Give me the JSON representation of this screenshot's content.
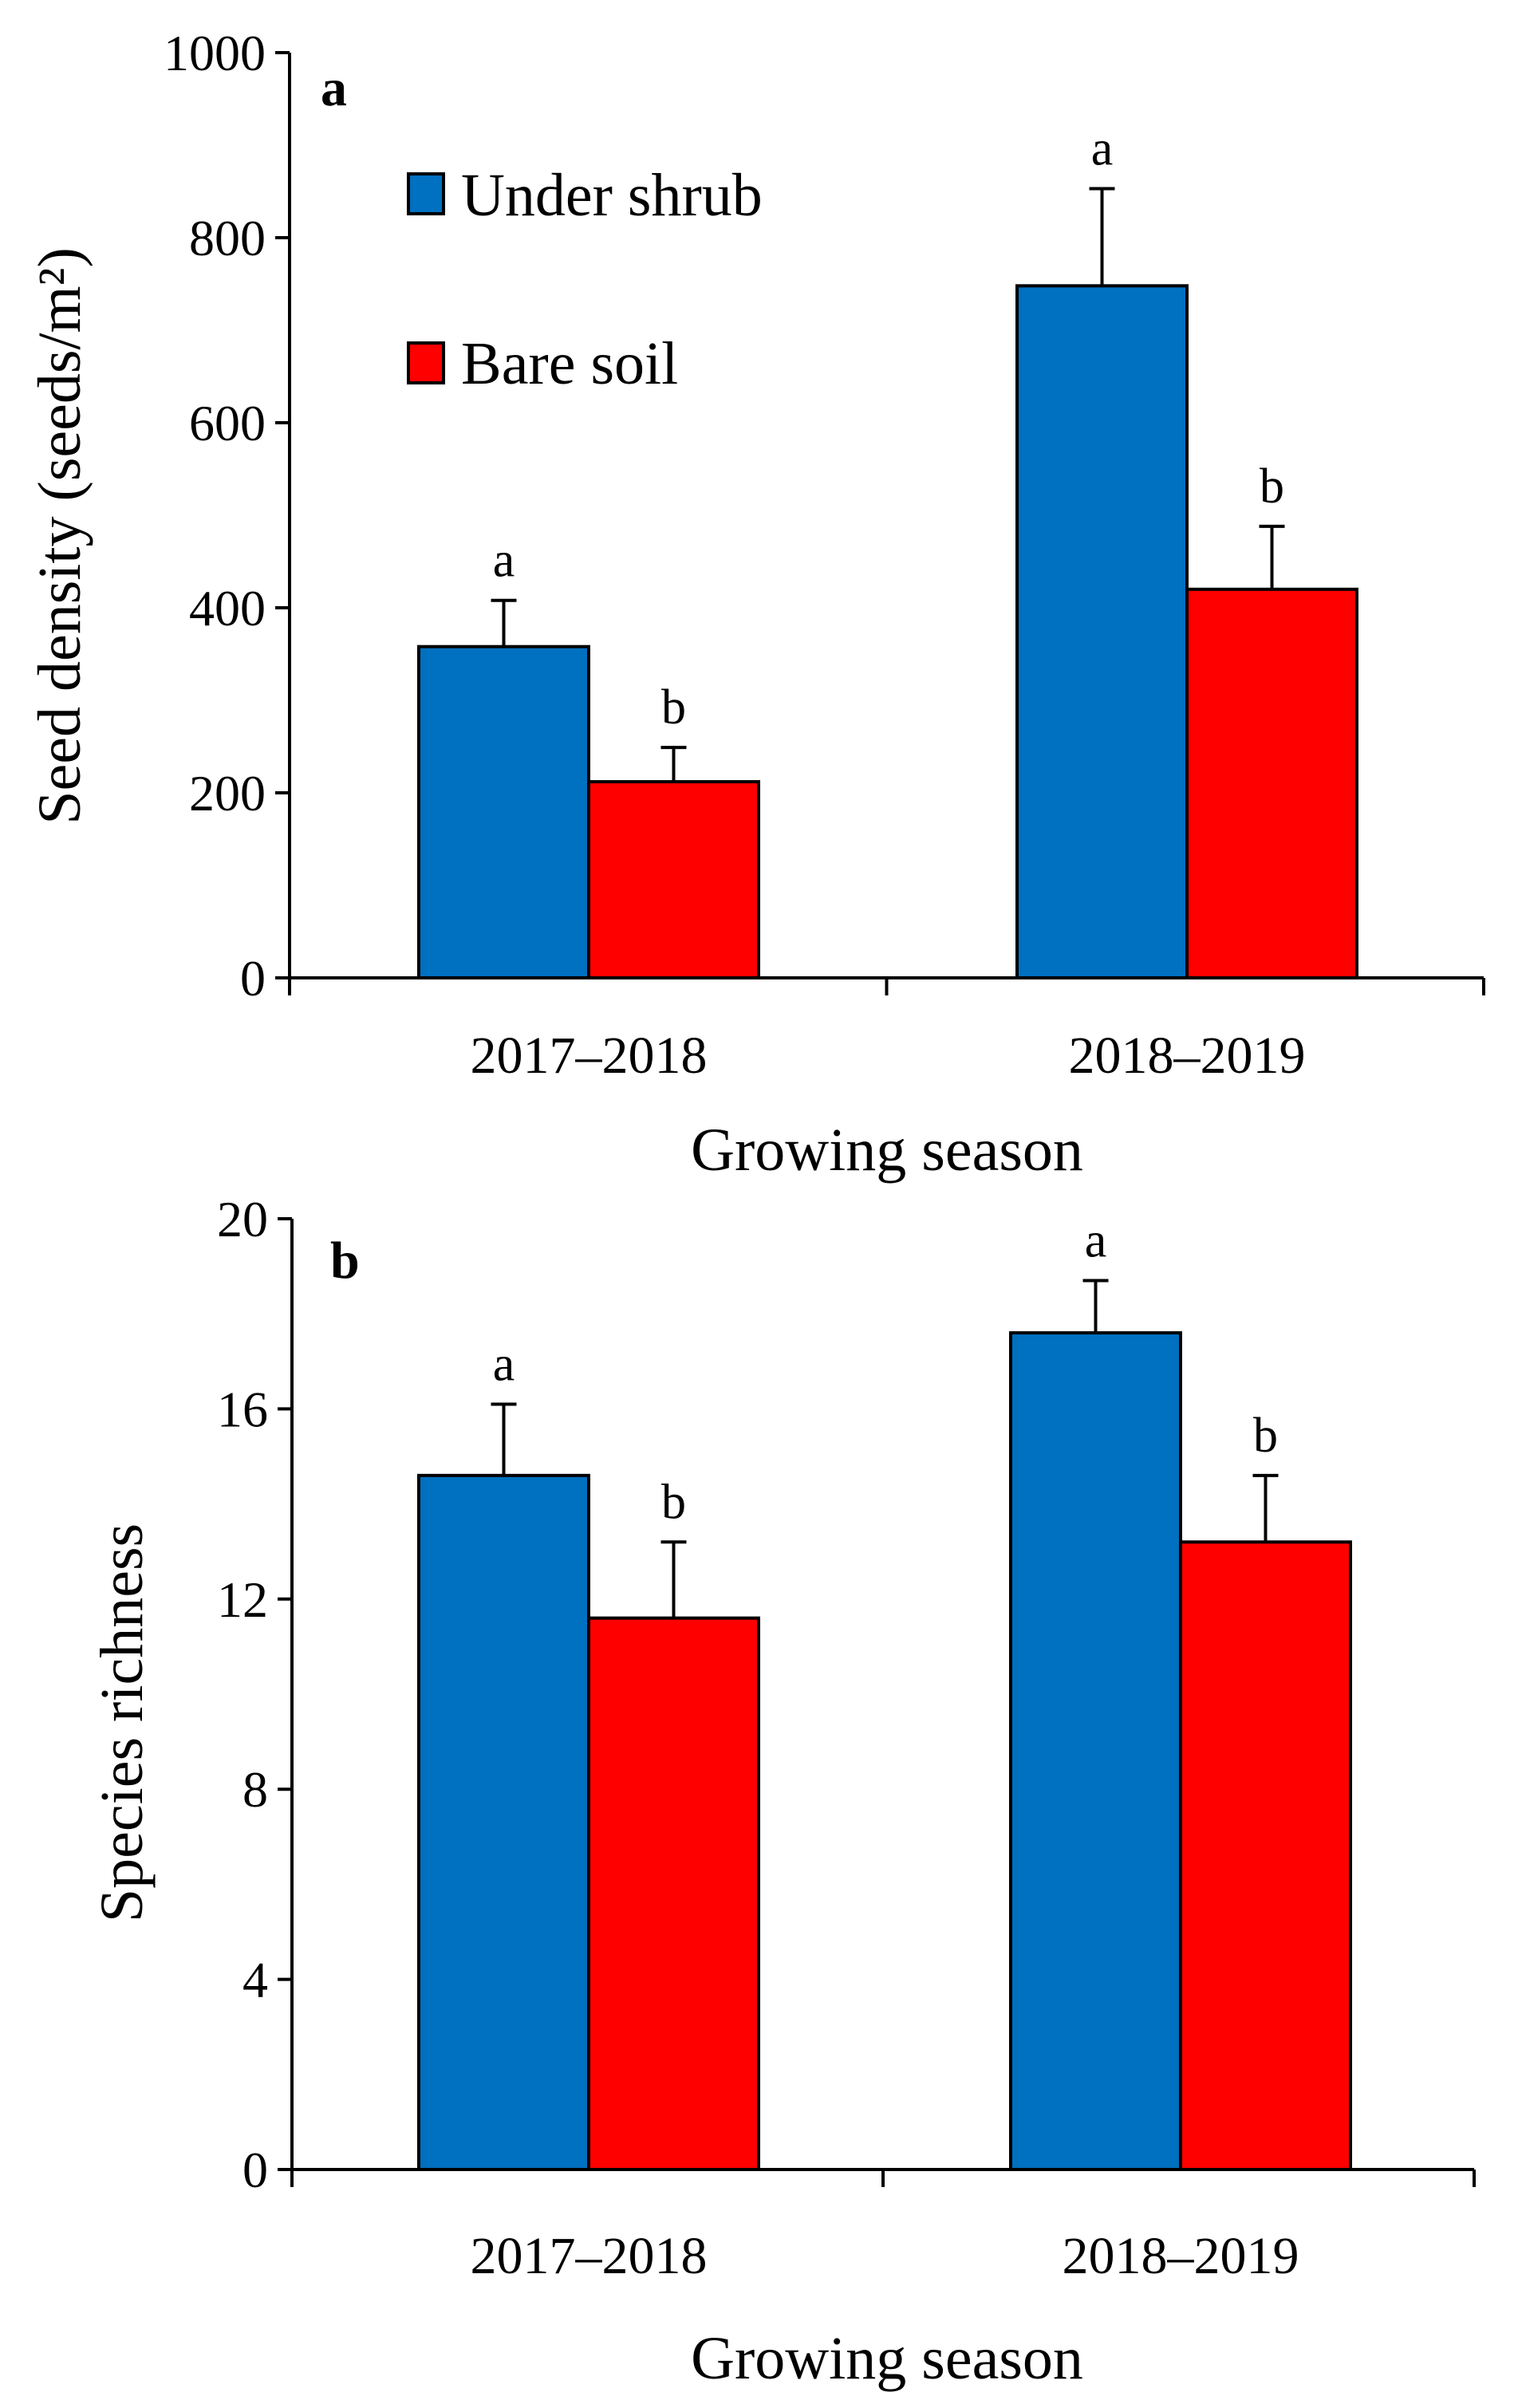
{
  "chart_data": [
    {
      "type": "bar",
      "panel_label": "a",
      "categories": [
        "2017–2018",
        "2018–2019"
      ],
      "series": [
        {
          "name": "Under shrub",
          "color": "#0070c0",
          "values": [
            358,
            748
          ],
          "errors": [
            50,
            105
          ],
          "letters": [
            "a",
            "a"
          ]
        },
        {
          "name": "Bare soil",
          "color": "#ff0000",
          "values": [
            212,
            420
          ],
          "errors": [
            37,
            68
          ],
          "letters": [
            "b",
            "b"
          ]
        }
      ],
      "ylabel": "Seed density (seeds/m²)",
      "xlabel": "Growing season",
      "ylim": [
        0,
        1000
      ],
      "yticks": [
        0,
        200,
        400,
        600,
        800,
        1000
      ],
      "ytick_labels": [
        "0",
        "200",
        "400",
        "600",
        "800",
        "1000"
      ],
      "legend": {
        "position": "top-left",
        "entries": [
          "Under shrub",
          "Bare soil"
        ]
      }
    },
    {
      "type": "bar",
      "panel_label": "b",
      "categories": [
        "2017–2018",
        "2018–2019"
      ],
      "series": [
        {
          "name": "Under shrub",
          "color": "#0070c0",
          "values": [
            14.6,
            17.6
          ],
          "errors": [
            1.5,
            1.1
          ],
          "letters": [
            "a",
            "a"
          ]
        },
        {
          "name": "Bare soil",
          "color": "#ff0000",
          "values": [
            11.6,
            13.2
          ],
          "errors": [
            1.6,
            1.4
          ],
          "letters": [
            "b",
            "b"
          ]
        }
      ],
      "ylabel": "Species richness",
      "xlabel": "Growing season",
      "ylim": [
        0,
        20
      ],
      "yticks": [
        0,
        4,
        8,
        12,
        16,
        20
      ],
      "ytick_labels": [
        "0",
        "4",
        "8",
        "12",
        "16",
        "20"
      ]
    }
  ]
}
